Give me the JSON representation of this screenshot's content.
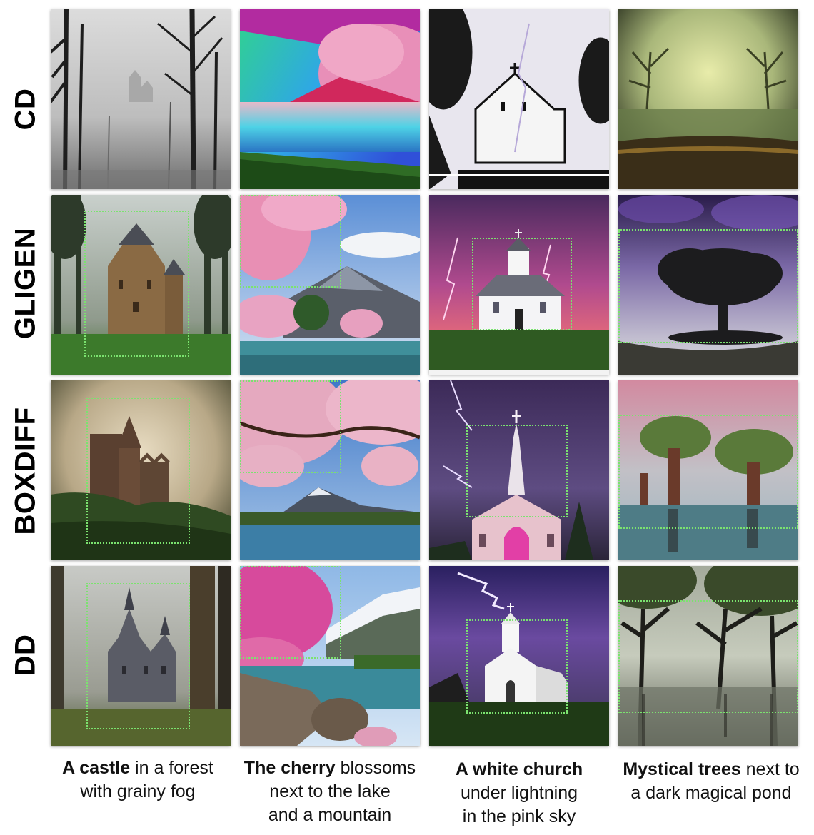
{
  "rows": [
    {
      "label": "CD"
    },
    {
      "label": "GLIGEN"
    },
    {
      "label": "BOXDIFF"
    },
    {
      "label": "DD"
    }
  ],
  "captions": [
    {
      "bold": "A castle",
      "line1": " in a forest",
      "line2": "with grainy fog",
      "line3": ""
    },
    {
      "bold": "The cherry",
      "line1": " blossoms",
      "line2": "next to the lake",
      "line3": "and a mountain"
    },
    {
      "bold": "A white church",
      "line1": "",
      "line2": "under lightning",
      "line3": "in the pink sky"
    },
    {
      "bold": "Mystical trees",
      "line1": " next to",
      "line2": "a dark magical pond",
      "line3": ""
    }
  ],
  "colors": {
    "bbox": "#7be36f",
    "castle_fog": "#8a8a8a",
    "cherry_pink": "#e58fb2",
    "sky_purple": "#5a3d7a",
    "lake_teal": "#3f8f9a"
  },
  "images": [
    [
      "castle-fog-grayscale",
      "cherry-lake-saturated",
      "church-lightning-silhouette",
      "trees-pond-green-vignette"
    ],
    [
      "castle-forest-fog",
      "cherry-blossoms-lake-mountain",
      "white-church-pink-storm",
      "single-tree-purple-sky"
    ],
    [
      "castle-hill-sepia-fog",
      "cherry-branches-lake",
      "church-steeple-purple-lightning",
      "trees-reflection-pond"
    ],
    [
      "castle-misty-forest",
      "cherry-lake-snowy-mountain",
      "white-church-lightning",
      "mystical-trees-swamp"
    ]
  ]
}
